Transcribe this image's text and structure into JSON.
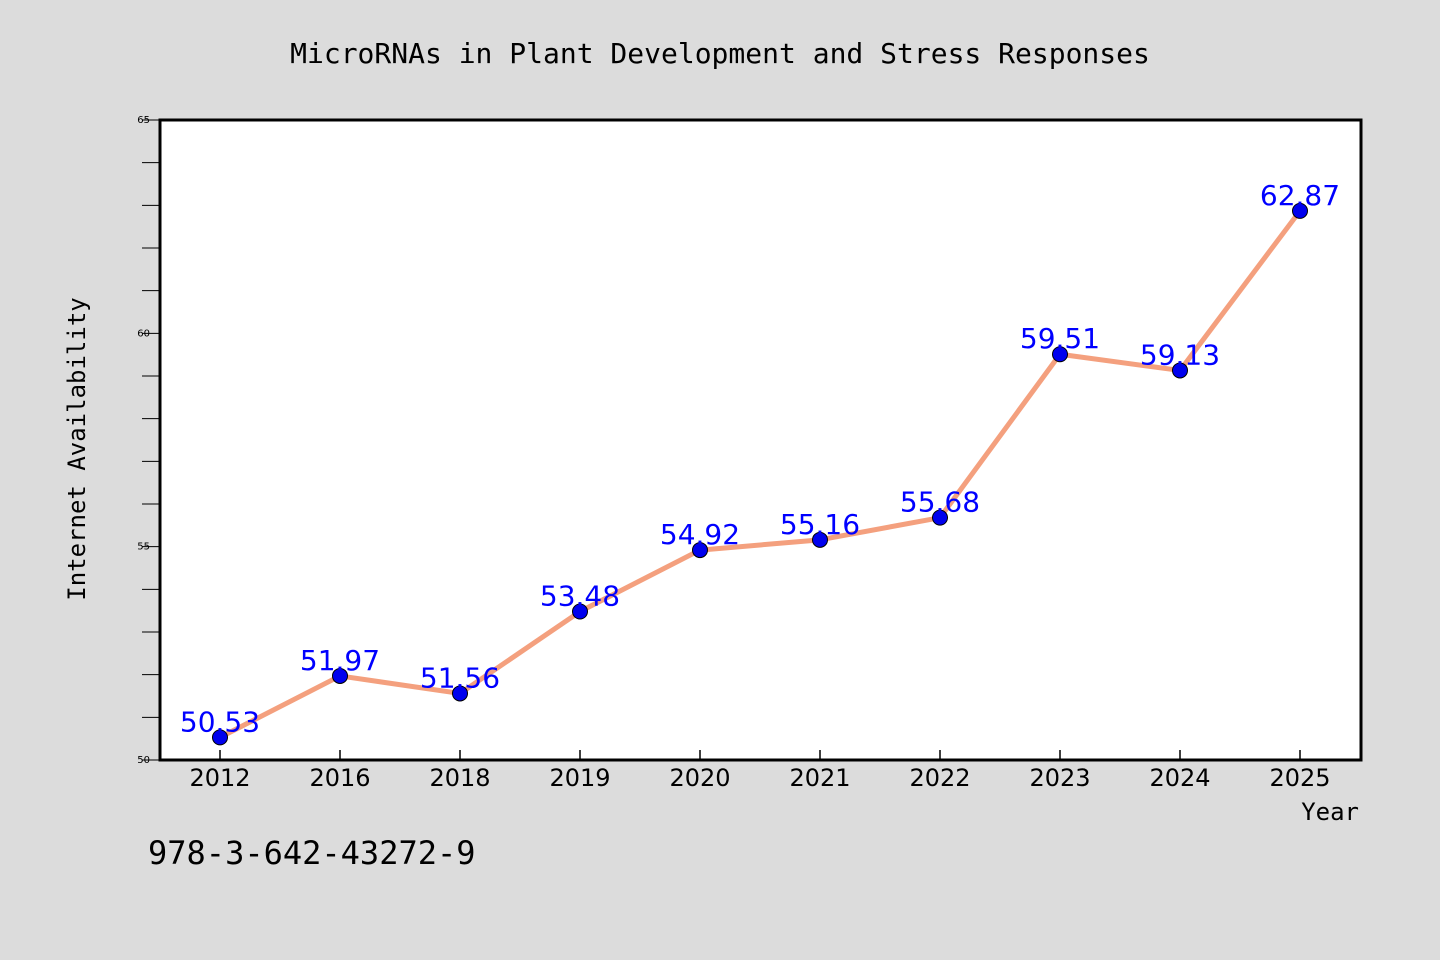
{
  "chart_data": {
    "type": "line",
    "title": "MicroRNAs in Plant Development and Stress Responses",
    "xlabel": "Year",
    "ylabel": "Internet Availability",
    "categories": [
      "2012",
      "2016",
      "2018",
      "2019",
      "2020",
      "2021",
      "2022",
      "2023",
      "2024",
      "2025"
    ],
    "series": [
      {
        "values": [
          50.53,
          51.97,
          51.56,
          53.48,
          54.92,
          55.16,
          55.68,
          59.51,
          59.13,
          62.87
        ],
        "labels": [
          "50.53",
          "51.97",
          "51.56",
          "53.48",
          "54.92",
          "55.16",
          "55.68",
          "59.51",
          "59.13",
          "62.87"
        ]
      }
    ],
    "ylim": [
      50,
      65
    ],
    "yticks": [
      "50",
      "55",
      "60",
      "65"
    ],
    "grid": false,
    "legend": "none"
  },
  "footer_text": "978-3-642-43272-9",
  "colors": {
    "background": "#dcdcdc",
    "plot_background": "#ffffff",
    "line": "#f4a07e",
    "marker": "#0000ee",
    "data_label": "#0000ff",
    "text": "#000000"
  }
}
